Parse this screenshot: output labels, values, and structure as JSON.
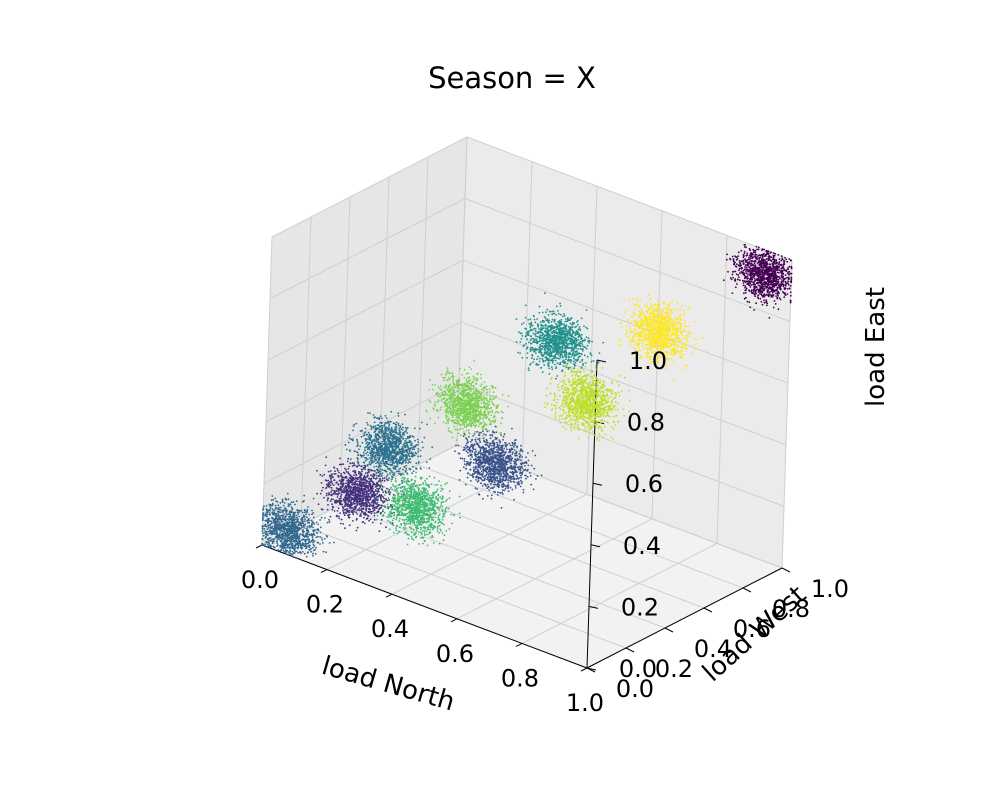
{
  "chart_data": {
    "type": "scatter",
    "title": "Season = X",
    "projection": "3d",
    "xlabel": "load North",
    "ylabel": "load West",
    "zlabel": "load East",
    "xlim": [
      0.0,
      1.0
    ],
    "ylim": [
      0.0,
      1.0
    ],
    "zlim": [
      0.0,
      1.0
    ],
    "x_ticks": [
      "0.0",
      "0.2",
      "0.4",
      "0.6",
      "0.8",
      "1.0"
    ],
    "y_ticks": [
      "0.0",
      "0.2",
      "0.4",
      "0.6",
      "0.8",
      "1.0"
    ],
    "z_ticks": [
      "0.0",
      "0.2",
      "0.4",
      "0.6",
      "0.8",
      "1.0"
    ],
    "grid": true,
    "colormap": "viridis",
    "clusters": [
      {
        "center": [
          0.05,
          0.05,
          0.05
        ],
        "color": "#31688e"
      },
      {
        "center": [
          0.2,
          0.15,
          0.2
        ],
        "color": "#46327e"
      },
      {
        "center": [
          0.2,
          0.3,
          0.3
        ],
        "color": "#2c728e"
      },
      {
        "center": [
          0.35,
          0.2,
          0.2
        ],
        "color": "#3fbc73"
      },
      {
        "center": [
          0.35,
          0.45,
          0.45
        ],
        "color": "#7ad151"
      },
      {
        "center": [
          0.5,
          0.35,
          0.35
        ],
        "color": "#3b528b"
      },
      {
        "center": [
          0.5,
          0.65,
          0.65
        ],
        "color": "#21918c"
      },
      {
        "center": [
          0.65,
          0.55,
          0.55
        ],
        "color": "#bddf26"
      },
      {
        "center": [
          0.75,
          0.75,
          0.75
        ],
        "color": "#fde725"
      },
      {
        "center": [
          0.95,
          0.95,
          0.95
        ],
        "color": "#440154"
      }
    ]
  }
}
